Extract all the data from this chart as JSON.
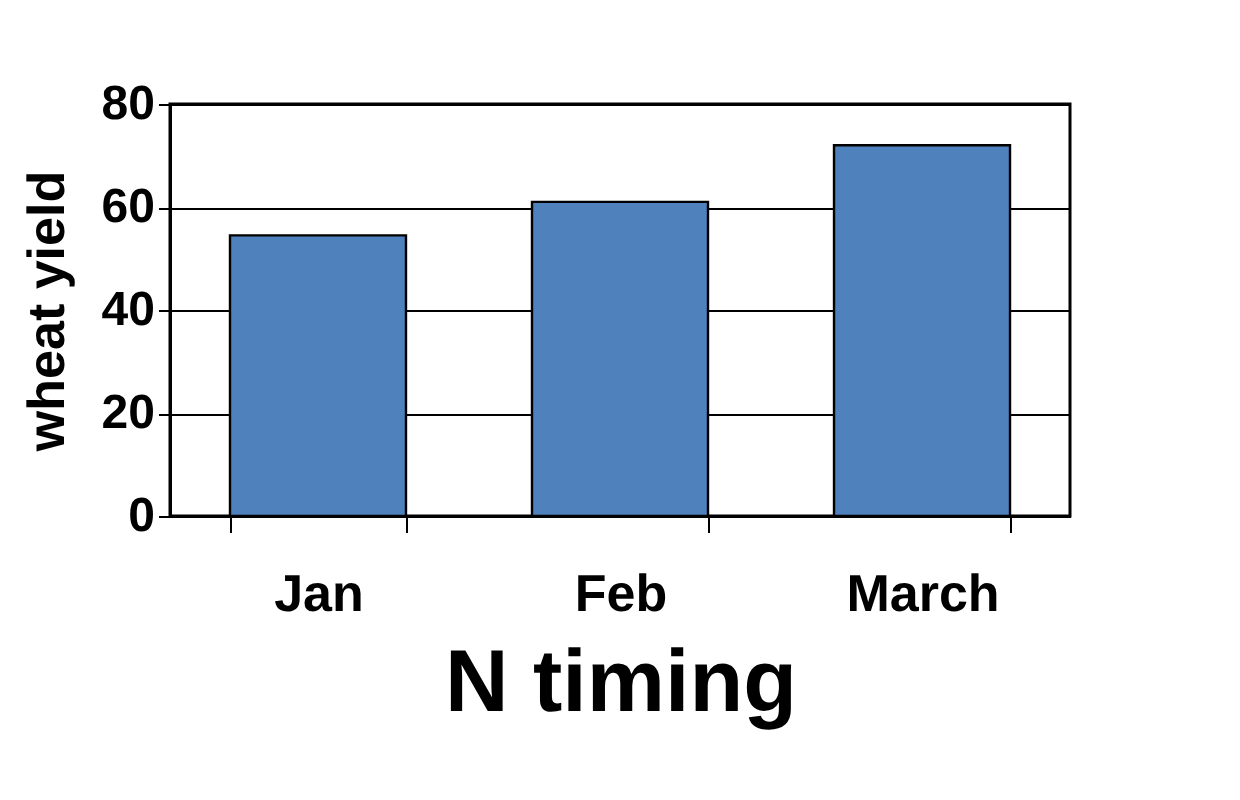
{
  "chart_data": {
    "type": "bar",
    "xlabel": "N timing",
    "ylabel": "wheat yield",
    "categories": [
      "Jan",
      "Feb",
      "March"
    ],
    "values": [
      54.5,
      61,
      72
    ],
    "color": "#4f81bd",
    "ylim": [
      0,
      80
    ],
    "yticks": [
      0,
      20,
      40,
      60,
      80
    ],
    "grid": "y"
  }
}
